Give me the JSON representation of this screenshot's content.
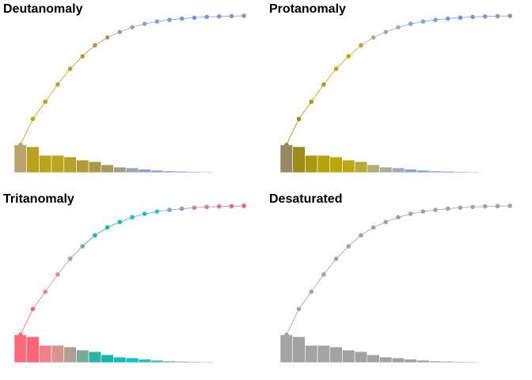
{
  "chart_data": [
    {
      "type": "pareto",
      "title": "Deutanomaly",
      "values": [
        17.7,
        16.5,
        11,
        11,
        10,
        8,
        7,
        5,
        3.5,
        3,
        2.2,
        1.5,
        1,
        0.8,
        0.6,
        0.5,
        0.3,
        0.2,
        0.2
      ],
      "colors": [
        "#b8a46c",
        "#b8a21e",
        "#b8a51a",
        "#b9a81f",
        "#b5a22a",
        "#b09c36",
        "#aa9a48",
        "#a89a5a",
        "#a3a08a",
        "#9da3b2",
        "#92a2cc",
        "#86a0dc",
        "#7a9ae2",
        "#7498e6",
        "#7196e8",
        "#7a98e0",
        "#8396d6",
        "#8e98b8",
        "#959595"
      ]
    },
    {
      "type": "pareto",
      "title": "Protanomaly",
      "values": [
        17.7,
        16.5,
        11,
        11,
        10,
        8,
        7,
        5,
        3.5,
        3,
        2.2,
        1.5,
        1,
        0.8,
        0.6,
        0.5,
        0.3,
        0.2,
        0.2
      ],
      "colors": [
        "#968a62",
        "#9c8c18",
        "#a89a10",
        "#b3a30c",
        "#bba70c",
        "#bca814",
        "#b8a838",
        "#b5aa70",
        "#a9aca0",
        "#9aa8c4",
        "#8ca6d8",
        "#80a0e0",
        "#7a9ae4",
        "#7498e6",
        "#7196e8",
        "#7a98e0",
        "#8396d6",
        "#8e98b8",
        "#959595"
      ]
    },
    {
      "type": "pareto",
      "title": "Tritanomaly",
      "values": [
        17.7,
        16.5,
        11,
        11,
        10,
        8,
        7,
        5,
        3.5,
        3,
        2.2,
        1.5,
        1,
        0.8,
        0.6,
        0.5,
        0.3,
        0.2,
        0.2
      ],
      "colors": [
        "#ff6a7a",
        "#ff6477",
        "#f0808a",
        "#d69590",
        "#b09f94",
        "#7aa89a",
        "#2ab4a6",
        "#14b8aa",
        "#10c0b8",
        "#14c4c4",
        "#20c0c8",
        "#40b8d0",
        "#70a8d0",
        "#a098c0",
        "#c088b0",
        "#d080a8",
        "#e070a0",
        "#e86898",
        "#e85c90"
      ]
    },
    {
      "type": "pareto",
      "title": "Desaturated",
      "values": [
        17.7,
        16.5,
        11,
        11,
        10,
        8,
        7,
        5,
        3.5,
        3,
        2.2,
        1.5,
        1,
        0.8,
        0.6,
        0.5,
        0.3,
        0.2,
        0.2
      ],
      "colors": [
        "#a4a4a4",
        "#a2a2a2",
        "#a4a4a4",
        "#a4a4a4",
        "#a3a3a3",
        "#a2a2a2",
        "#a2a2a2",
        "#a2a2a2",
        "#a2a2a2",
        "#a2a2a2",
        "#a2a2a2",
        "#a2a2a2",
        "#a2a2a2",
        "#a2a2a2",
        "#a2a2a2",
        "#a2a2a2",
        "#a2a2a2",
        "#a2a2a2",
        "#a2a2a2"
      ]
    }
  ]
}
